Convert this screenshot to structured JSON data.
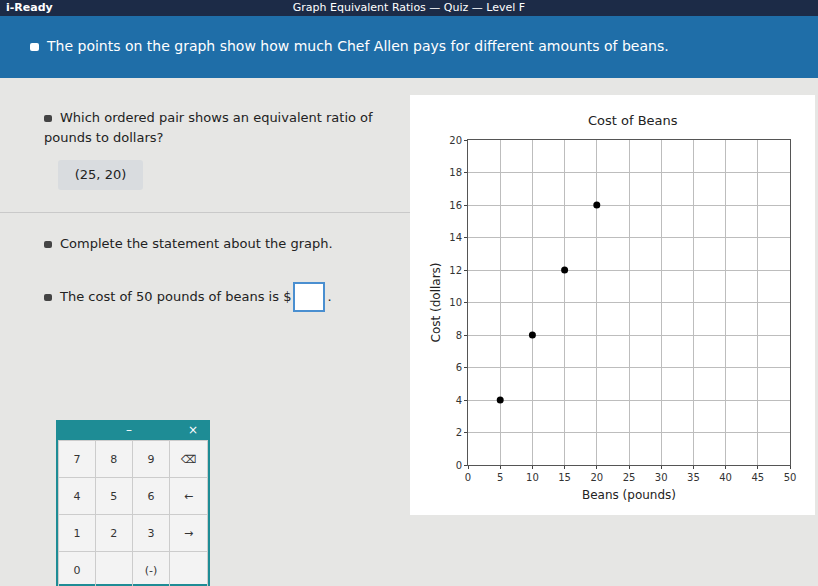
{
  "header": {
    "logo": "i-Ready",
    "title": "Graph Equivalent Ratios — Quiz — Level F"
  },
  "prompt": "The points on the graph show how much Chef Allen pays for different amounts of beans.",
  "questions": [
    {
      "text": "Which ordered pair shows an equivalent ratio of pounds to dollars?",
      "answer": "(25, 20)"
    },
    {
      "text": "Complete the statement about the graph.",
      "statement_before": "The cost of 50 pounds of beans is $",
      "statement_after": "."
    }
  ],
  "keypad": {
    "header": [
      "–",
      "×"
    ],
    "rows": [
      [
        "7",
        "8",
        "9",
        "⌫"
      ],
      [
        "4",
        "5",
        "6",
        "←"
      ],
      [
        "1",
        "2",
        "3",
        "→"
      ],
      [
        "0",
        null,
        "(-)",
        null
      ]
    ]
  },
  "chart_data": {
    "type": "scatter",
    "title": "Cost of Beans",
    "x_label": "Beans (pounds)",
    "y_label": "Cost (dollars)",
    "x": [
      5,
      10,
      15,
      20
    ],
    "values": [
      4,
      8,
      12,
      16
    ],
    "color": "#000000",
    "marker": "circle",
    "xlim": [
      0,
      50
    ],
    "xticks": [
      0,
      5,
      10,
      15,
      20,
      25,
      30,
      35,
      40,
      45,
      50
    ],
    "ylim": [
      0,
      20
    ],
    "yticks": [
      0,
      2,
      4,
      6,
      8,
      10,
      12,
      14,
      16,
      18,
      20
    ],
    "grid": true
  }
}
